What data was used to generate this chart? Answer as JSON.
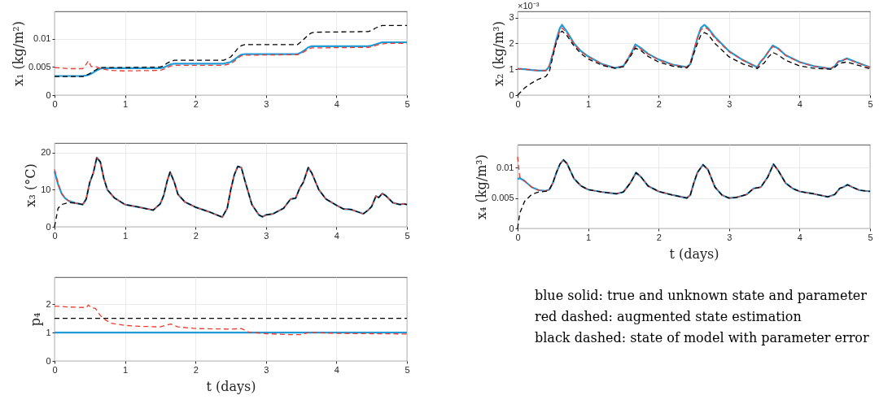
{
  "chart_data": [
    {
      "type": "line",
      "ylabel": "x₁ (kg/m²)",
      "xlim": [
        0,
        5
      ],
      "xticks": [
        0,
        1,
        2,
        3,
        4,
        5
      ],
      "ylim": [
        0,
        0.0149
      ],
      "yticks": [
        0,
        0.005,
        0.01
      ],
      "grid": true,
      "x": [
        0,
        0.2,
        0.4,
        0.45,
        0.48,
        0.52,
        0.56,
        0.6,
        0.65,
        0.7,
        0.8,
        1,
        1.5,
        1.55,
        1.6,
        1.65,
        1.7,
        2.4,
        2.5,
        2.55,
        2.6,
        2.65,
        2.7,
        3.45,
        3.5,
        3.55,
        3.6,
        3.65,
        3.7,
        4.45,
        4.5,
        4.55,
        4.6,
        4.65,
        4.7,
        5
      ],
      "series": [
        {
          "color": "#1f9bd7",
          "line_style": "solid",
          "values": [
            0.0034,
            0.0034,
            0.0034,
            0.0035,
            0.0036,
            0.0038,
            0.0041,
            0.0044,
            0.0047,
            0.0048,
            0.0048,
            0.0048,
            0.0048,
            0.0049,
            0.0052,
            0.0055,
            0.0056,
            0.0056,
            0.0059,
            0.0063,
            0.0068,
            0.0072,
            0.0073,
            0.0073,
            0.0076,
            0.008,
            0.0085,
            0.0087,
            0.0087,
            0.0087,
            0.0088,
            0.009,
            0.0092,
            0.0094,
            0.0094,
            0.0094
          ]
        },
        {
          "color": "#f03c2d",
          "line_style": "dashed",
          "values": [
            0.0049,
            0.0047,
            0.0047,
            0.0055,
            0.0061,
            0.0051,
            0.0051,
            0.005,
            0.0047,
            0.0046,
            0.0044,
            0.0043,
            0.0044,
            0.0046,
            0.0049,
            0.0052,
            0.0053,
            0.0053,
            0.0056,
            0.006,
            0.0066,
            0.007,
            0.0071,
            0.0072,
            0.0074,
            0.0078,
            0.0082,
            0.0084,
            0.0084,
            0.0085,
            0.0086,
            0.0088,
            0.009,
            0.0091,
            0.0092,
            0.0092
          ]
        },
        {
          "color": "#000000",
          "line_style": "dashed",
          "values": [
            0.0033,
            0.0033,
            0.0033,
            0.0035,
            0.0037,
            0.004,
            0.0043,
            0.0046,
            0.0049,
            0.0049,
            0.0049,
            0.0049,
            0.005,
            0.0052,
            0.0057,
            0.006,
            0.0062,
            0.0062,
            0.0068,
            0.0075,
            0.0083,
            0.0088,
            0.009,
            0.009,
            0.0095,
            0.0101,
            0.0107,
            0.0111,
            0.0112,
            0.0113,
            0.0115,
            0.0119,
            0.0122,
            0.0124,
            0.0124,
            0.0124
          ]
        }
      ]
    },
    {
      "type": "line",
      "ylabel": "x₂ (kg/m³)",
      "annotations": [
        "×10⁻³"
      ],
      "xlim": [
        0,
        5
      ],
      "xticks": [
        0,
        1,
        2,
        3,
        4,
        5
      ],
      "ylim": [
        0,
        3.24
      ],
      "yticks": [
        0,
        1,
        2,
        3
      ],
      "grid": true,
      "x": [
        0,
        0.1,
        0.2,
        0.3,
        0.4,
        0.45,
        0.5,
        0.55,
        0.6,
        0.63,
        0.7,
        0.8,
        0.9,
        1.0,
        1.2,
        1.38,
        1.5,
        1.6,
        1.67,
        1.75,
        1.85,
        2.0,
        2.2,
        2.4,
        2.45,
        2.5,
        2.55,
        2.6,
        2.65,
        2.7,
        2.8,
        3.0,
        3.2,
        3.4,
        3.45,
        3.5,
        3.55,
        3.62,
        3.7,
        3.8,
        4.0,
        4.2,
        4.44,
        4.5,
        4.55,
        4.6,
        4.67,
        4.8,
        5.0
      ],
      "series": [
        {
          "color": "#1f9bd7",
          "line_style": "solid",
          "values": [
            1.02,
            1.0,
            0.97,
            0.95,
            0.95,
            1.1,
            1.6,
            2.15,
            2.6,
            2.72,
            2.45,
            2.0,
            1.7,
            1.5,
            1.2,
            1.05,
            1.12,
            1.55,
            1.96,
            1.82,
            1.6,
            1.38,
            1.18,
            1.08,
            1.2,
            1.7,
            2.2,
            2.6,
            2.72,
            2.6,
            2.25,
            1.7,
            1.35,
            1.08,
            1.3,
            1.45,
            1.65,
            1.92,
            1.8,
            1.55,
            1.28,
            1.12,
            1.02,
            1.12,
            1.3,
            1.33,
            1.42,
            1.28,
            1.08
          ]
        },
        {
          "color": "#f03c2d",
          "line_style": "dashed",
          "values": [
            1.02,
            1.0,
            0.97,
            0.95,
            0.95,
            1.15,
            1.65,
            2.1,
            2.5,
            2.6,
            2.4,
            1.97,
            1.68,
            1.48,
            1.19,
            1.05,
            1.12,
            1.6,
            1.88,
            1.78,
            1.58,
            1.36,
            1.17,
            1.08,
            1.25,
            1.75,
            2.2,
            2.52,
            2.63,
            2.55,
            2.2,
            1.68,
            1.34,
            1.07,
            1.3,
            1.45,
            1.65,
            1.88,
            1.78,
            1.54,
            1.27,
            1.12,
            1.02,
            1.15,
            1.3,
            1.33,
            1.4,
            1.27,
            1.07
          ]
        },
        {
          "color": "#000000",
          "line_style": "dashed",
          "values": [
            0.0,
            0.28,
            0.47,
            0.62,
            0.72,
            0.9,
            1.5,
            2.05,
            2.4,
            2.48,
            2.3,
            1.9,
            1.6,
            1.4,
            1.15,
            1.04,
            1.1,
            1.5,
            1.82,
            1.72,
            1.5,
            1.28,
            1.12,
            1.05,
            1.2,
            1.6,
            2.0,
            2.32,
            2.42,
            2.35,
            2.0,
            1.48,
            1.2,
            1.03,
            1.15,
            1.25,
            1.45,
            1.65,
            1.55,
            1.35,
            1.13,
            1.04,
            1.0,
            1.08,
            1.2,
            1.25,
            1.28,
            1.18,
            1.02
          ]
        }
      ]
    },
    {
      "type": "line",
      "ylabel": "x₃ (°C)",
      "xlim": [
        0,
        5
      ],
      "xticks": [
        0,
        1,
        2,
        3,
        4,
        5
      ],
      "ylim": [
        0,
        22.6
      ],
      "yticks": [
        0,
        10,
        20
      ],
      "grid": true,
      "x": [
        0,
        0.05,
        0.1,
        0.15,
        0.2,
        0.3,
        0.4,
        0.45,
        0.5,
        0.55,
        0.6,
        0.65,
        0.7,
        0.75,
        0.85,
        1.0,
        1.2,
        1.4,
        1.5,
        1.55,
        1.6,
        1.64,
        1.7,
        1.75,
        1.85,
        2.0,
        2.2,
        2.38,
        2.45,
        2.5,
        2.55,
        2.6,
        2.65,
        2.7,
        2.8,
        2.9,
        2.95,
        3.0,
        3.1,
        3.25,
        3.35,
        3.42,
        3.48,
        3.53,
        3.6,
        3.65,
        3.75,
        3.85,
        4.0,
        4.1,
        4.2,
        4.38,
        4.45,
        4.5,
        4.56,
        4.6,
        4.65,
        4.7,
        4.8,
        4.9,
        4.95,
        5.0
      ],
      "series": [
        {
          "color": "#1f9bd7",
          "line_style": "solid",
          "values": [
            15.0,
            11.5,
            9.0,
            7.7,
            7.0,
            6.4,
            6.0,
            7.5,
            12.0,
            14.5,
            18.7,
            17.5,
            13.0,
            10.0,
            7.8,
            6.0,
            5.3,
            4.5,
            6.2,
            8.5,
            12.5,
            14.8,
            12.0,
            8.8,
            6.7,
            5.3,
            4.0,
            2.6,
            5.0,
            10.0,
            14.0,
            16.3,
            16.0,
            12.5,
            6.0,
            3.2,
            2.7,
            3.2,
            3.5,
            5.0,
            7.5,
            7.7,
            10.5,
            12.0,
            16.0,
            14.5,
            10.0,
            7.5,
            5.8,
            4.8,
            4.7,
            3.5,
            4.5,
            5.5,
            8.3,
            7.9,
            9.0,
            8.4,
            6.5,
            6.0,
            6.2,
            6.0
          ]
        },
        {
          "color": "#f03c2d",
          "line_style": "dashed",
          "values": [
            15.5,
            11.8,
            9.0,
            7.7,
            7.0,
            6.4,
            6.0,
            7.5,
            12.0,
            14.5,
            18.7,
            17.5,
            13.0,
            10.0,
            7.8,
            6.0,
            5.3,
            4.5,
            6.2,
            8.5,
            12.5,
            14.8,
            12.0,
            8.8,
            6.7,
            5.3,
            4.0,
            2.6,
            5.0,
            10.0,
            14.0,
            16.3,
            16.0,
            12.5,
            6.0,
            3.2,
            2.7,
            3.2,
            3.5,
            5.0,
            7.5,
            7.7,
            10.5,
            12.0,
            16.0,
            14.5,
            10.0,
            7.5,
            5.8,
            4.8,
            4.7,
            3.5,
            4.5,
            5.5,
            8.3,
            7.9,
            9.0,
            8.4,
            6.5,
            6.0,
            6.2,
            6.0
          ]
        },
        {
          "color": "#000000",
          "line_style": "dashed",
          "values": [
            0.0,
            5.0,
            6.0,
            6.3,
            6.5,
            6.4,
            6.0,
            7.5,
            12.0,
            14.5,
            18.7,
            17.5,
            13.0,
            10.0,
            7.8,
            6.0,
            5.3,
            4.5,
            6.2,
            8.5,
            12.5,
            14.8,
            12.0,
            8.8,
            6.7,
            5.3,
            4.0,
            2.6,
            5.0,
            10.0,
            14.0,
            16.3,
            16.0,
            12.5,
            6.0,
            3.2,
            2.7,
            3.2,
            3.5,
            5.0,
            7.5,
            7.7,
            10.5,
            12.0,
            16.0,
            14.5,
            10.0,
            7.5,
            5.8,
            4.8,
            4.7,
            3.5,
            4.5,
            5.5,
            8.3,
            7.9,
            9.0,
            8.4,
            6.5,
            6.0,
            6.2,
            6.0
          ]
        }
      ]
    },
    {
      "type": "line",
      "ylabel": "x₄ (kg/m³)",
      "xlabel": "t (days)",
      "xlim": [
        0,
        5
      ],
      "xticks": [
        0,
        1,
        2,
        3,
        4,
        5
      ],
      "ylim": [
        0,
        0.0138
      ],
      "yticks": [
        0,
        0.005,
        0.01
      ],
      "grid": true,
      "x": [
        0,
        0.03,
        0.1,
        0.2,
        0.3,
        0.4,
        0.45,
        0.5,
        0.55,
        0.6,
        0.65,
        0.7,
        0.8,
        0.9,
        1.0,
        1.2,
        1.4,
        1.5,
        1.6,
        1.68,
        1.75,
        1.85,
        2.0,
        2.2,
        2.4,
        2.45,
        2.5,
        2.55,
        2.63,
        2.7,
        2.8,
        2.9,
        3.0,
        3.1,
        3.25,
        3.35,
        3.45,
        3.55,
        3.63,
        3.7,
        3.8,
        3.9,
        4.0,
        4.2,
        4.4,
        4.5,
        4.57,
        4.62,
        4.68,
        4.75,
        4.85,
        5.0
      ],
      "series": [
        {
          "color": "#1f9bd7",
          "line_style": "solid",
          "values": [
            0.0081,
            0.0083,
            0.0078,
            0.0068,
            0.0063,
            0.0062,
            0.0064,
            0.0075,
            0.0092,
            0.0106,
            0.0113,
            0.0107,
            0.0082,
            0.007,
            0.0064,
            0.006,
            0.0057,
            0.006,
            0.0075,
            0.0092,
            0.0085,
            0.007,
            0.0061,
            0.0055,
            0.005,
            0.0055,
            0.0075,
            0.0092,
            0.0105,
            0.0097,
            0.0068,
            0.0055,
            0.005,
            0.0051,
            0.0056,
            0.0066,
            0.0068,
            0.0085,
            0.0106,
            0.0095,
            0.0075,
            0.0066,
            0.0061,
            0.0057,
            0.0052,
            0.0056,
            0.0066,
            0.0068,
            0.0072,
            0.0068,
            0.0063,
            0.0061
          ]
        },
        {
          "color": "#f03c2d",
          "line_style": "dashed",
          "values": [
            0.0118,
            0.0085,
            0.0078,
            0.0068,
            0.0063,
            0.0062,
            0.0064,
            0.0075,
            0.0092,
            0.0106,
            0.0113,
            0.0107,
            0.0082,
            0.007,
            0.0064,
            0.006,
            0.0057,
            0.006,
            0.0075,
            0.0092,
            0.0085,
            0.007,
            0.0061,
            0.0055,
            0.005,
            0.0055,
            0.0075,
            0.0092,
            0.0105,
            0.0097,
            0.0068,
            0.0055,
            0.005,
            0.0051,
            0.0056,
            0.0066,
            0.0068,
            0.0085,
            0.0106,
            0.0095,
            0.0075,
            0.0066,
            0.0061,
            0.0057,
            0.0052,
            0.0056,
            0.0066,
            0.0068,
            0.0072,
            0.0068,
            0.0063,
            0.0061
          ]
        },
        {
          "color": "#000000",
          "line_style": "dashed",
          "values": [
            0.0,
            0.0025,
            0.0045,
            0.0056,
            0.006,
            0.0061,
            0.0064,
            0.0075,
            0.0092,
            0.0106,
            0.0113,
            0.0107,
            0.0082,
            0.007,
            0.0064,
            0.006,
            0.0057,
            0.006,
            0.0075,
            0.0092,
            0.0085,
            0.007,
            0.0061,
            0.0055,
            0.005,
            0.0055,
            0.0075,
            0.0092,
            0.0105,
            0.0097,
            0.0068,
            0.0055,
            0.005,
            0.0051,
            0.0056,
            0.0066,
            0.0068,
            0.0085,
            0.0106,
            0.0095,
            0.0075,
            0.0066,
            0.0061,
            0.0057,
            0.0052,
            0.0056,
            0.0066,
            0.0068,
            0.0072,
            0.0068,
            0.0063,
            0.0061
          ]
        }
      ]
    },
    {
      "type": "line",
      "ylabel": "p₄",
      "xlabel": "t (days)",
      "xlim": [
        0,
        5
      ],
      "xticks": [
        0,
        1,
        2,
        3,
        4,
        5
      ],
      "ylim": [
        0,
        2.95
      ],
      "yticks": [
        0,
        1,
        2
      ],
      "grid": true,
      "x": [
        0,
        0.2,
        0.45,
        0.48,
        0.52,
        0.58,
        0.65,
        0.72,
        0.8,
        1.0,
        1.2,
        1.5,
        1.6,
        1.65,
        1.75,
        2.0,
        2.5,
        2.65,
        2.75,
        3.0,
        3.3,
        3.5,
        3.6,
        3.7,
        4.0,
        4.5,
        5.0
      ],
      "series": [
        {
          "color": "#1f9bd7",
          "line_style": "solid",
          "values": [
            1,
            1,
            1,
            1,
            1,
            1,
            1,
            1,
            1,
            1,
            1,
            1,
            1,
            1,
            1,
            1,
            1,
            1,
            1,
            1,
            1,
            1,
            1,
            1,
            1,
            1,
            1
          ]
        },
        {
          "color": "#f03c2d",
          "line_style": "dashed",
          "values": [
            1.93,
            1.9,
            1.88,
            1.97,
            1.88,
            1.85,
            1.6,
            1.45,
            1.33,
            1.25,
            1.22,
            1.2,
            1.27,
            1.3,
            1.2,
            1.14,
            1.12,
            1.14,
            1.02,
            0.96,
            0.93,
            0.93,
            1.0,
            1.0,
            0.97,
            0.96,
            0.95
          ]
        },
        {
          "color": "#000000",
          "line_style": "dashed",
          "values": [
            1.5,
            1.5,
            1.5,
            1.5,
            1.5,
            1.5,
            1.5,
            1.5,
            1.5,
            1.5,
            1.5,
            1.5,
            1.5,
            1.5,
            1.5,
            1.5,
            1.5,
            1.5,
            1.5,
            1.5,
            1.5,
            1.5,
            1.5,
            1.5,
            1.5,
            1.5,
            1.5
          ]
        }
      ]
    },
    {
      "type": "other",
      "annotations": [
        "blue solid: true and unknown state and parameter",
        "red dashed: augmented state estimation",
        "black dashed: state of model with parameter error"
      ]
    }
  ]
}
